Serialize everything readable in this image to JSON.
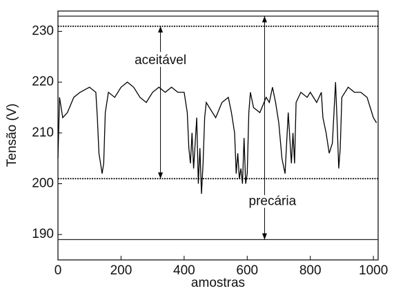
{
  "chart_data": {
    "type": "line",
    "xlabel": "amostras",
    "ylabel": "Tensão (V)",
    "x": [
      0,
      5,
      15,
      30,
      50,
      70,
      100,
      120,
      125,
      130,
      135,
      140,
      145,
      150,
      160,
      180,
      200,
      220,
      240,
      260,
      280,
      300,
      320,
      340,
      360,
      380,
      400,
      410,
      415,
      420,
      425,
      430,
      440,
      445,
      450,
      455,
      460,
      465,
      470,
      480,
      500,
      520,
      540,
      550,
      560,
      565,
      570,
      575,
      580,
      585,
      590,
      595,
      600,
      605,
      610,
      620,
      640,
      660,
      670,
      680,
      690,
      700,
      710,
      720,
      730,
      740,
      745,
      750,
      755,
      770,
      790,
      800,
      820,
      835,
      840,
      850,
      860,
      870,
      880,
      885,
      890,
      895,
      900,
      920,
      940,
      960,
      980,
      990,
      1000,
      1010
    ],
    "values": [
      205,
      217,
      213,
      214,
      217,
      218,
      219,
      218,
      213,
      206,
      204,
      202,
      204,
      214,
      218,
      217,
      219,
      220,
      219,
      217,
      216,
      218,
      219,
      218,
      219,
      218,
      218,
      214,
      207,
      204,
      210,
      203,
      213,
      200,
      207,
      198,
      204,
      213,
      216,
      215,
      213,
      216,
      217,
      214,
      210,
      202,
      206,
      201,
      203,
      200,
      209,
      200,
      202,
      214,
      218,
      215,
      214,
      217,
      216,
      219,
      216,
      212,
      205,
      202,
      214,
      204,
      210,
      204,
      216,
      218,
      217,
      218,
      216,
      218,
      213,
      210,
      206,
      208,
      220,
      212,
      203,
      207,
      217,
      219,
      218,
      218,
      217,
      215,
      213,
      212
    ],
    "color": "#000000",
    "xlim": [
      0,
      1015
    ],
    "ylim": [
      185,
      234
    ],
    "xticks": [
      0,
      200,
      400,
      600,
      800,
      1000
    ],
    "yticks": [
      190,
      200,
      210,
      220,
      230
    ],
    "hlines": [
      {
        "y": 233,
        "dashed": false
      },
      {
        "y": 231,
        "dashed": true
      },
      {
        "y": 201,
        "dashed": true
      },
      {
        "y": 189,
        "dashed": false
      }
    ],
    "arrows": [
      {
        "x": 325,
        "from": 231,
        "to": 201
      },
      {
        "x": 655,
        "from": 233,
        "to": 189
      }
    ],
    "annotations": [
      {
        "text": "aceitável",
        "x": 325,
        "y": 224.2
      },
      {
        "text": "precária",
        "x": 680,
        "y": 196.5
      }
    ]
  }
}
